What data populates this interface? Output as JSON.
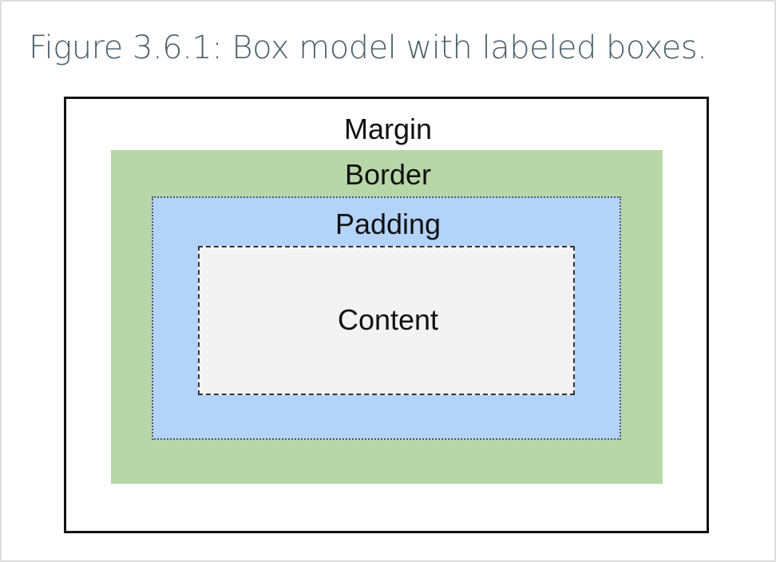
{
  "figure": {
    "caption": "Figure 3.6.1: Box model with labeled boxes."
  },
  "diagram": {
    "margin_label": "Margin",
    "border_label": "Border",
    "padding_label": "Padding",
    "content_label": "Content",
    "colors": {
      "margin": "#ffffff",
      "border": "#b7d7a8",
      "padding": "#b4d3f9",
      "content": "#f3f3f3",
      "caption": "#4d626c"
    }
  }
}
